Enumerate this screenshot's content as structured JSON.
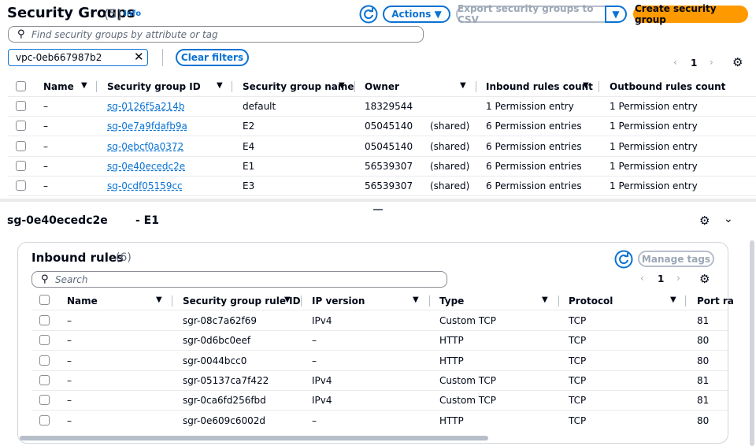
{
  "header": {
    "title": "Security Groups",
    "count": "(5)",
    "info": "Info",
    "actions": "Actions",
    "export": "Export security groups to CSV",
    "create": "Create security group"
  },
  "search": {
    "placeholder": "Find security groups by attribute or tag",
    "token": "vpc-0eb667987b2",
    "clear": "Clear filters",
    "page": "1"
  },
  "table": {
    "columns": [
      "Name",
      "Security group ID",
      "Security group name",
      "Owner",
      "Inbound rules count",
      "Outbound rules count"
    ],
    "rows": [
      {
        "name": "–",
        "id": "sg-0126f5a214b",
        "group": "default",
        "owner": "18329544",
        "inbound": "1 Permission entry",
        "outbound": "1 Permission entry"
      },
      {
        "name": "–",
        "id": "sg-0e7a9fdafb9a",
        "group": "E2",
        "owner": "05045140",
        "shared": "(shared)",
        "inbound": "6 Permission entries",
        "outbound": "1 Permission entry"
      },
      {
        "name": "–",
        "id": "sg-0ebcf0a0372",
        "group": "E4",
        "owner": "05045140",
        "shared": "(shared)",
        "inbound": "6 Permission entries",
        "outbound": "1 Permission entry"
      },
      {
        "name": "–",
        "id": "sg-0e40ecedc2e",
        "group": "E1",
        "owner": "56539307",
        "shared": "(shared)",
        "inbound": "6 Permission entries",
        "outbound": "1 Permission entry"
      },
      {
        "name": "–",
        "id": "sg-0cdf05159cc",
        "group": "E3",
        "owner": "56539307",
        "shared": "(shared)",
        "inbound": "6 Permission entries",
        "outbound": "1 Permission entry"
      }
    ]
  },
  "detail": {
    "title": "sg-0e40ecedc2e",
    "suffix": "- E1"
  },
  "inbound": {
    "title": "Inbound rules",
    "count": "(6)",
    "manage": "Manage tags",
    "search": "Search",
    "page": "1",
    "columns": [
      "Name",
      "Security group rule ID",
      "IP version",
      "Type",
      "Protocol",
      "Port ra"
    ],
    "rows": [
      [
        "–",
        "sgr-08c7a62f69",
        "IPv4",
        "Custom TCP",
        "TCP",
        "81"
      ],
      [
        "–",
        "sgr-0d6bc0eef",
        "–",
        "HTTP",
        "TCP",
        "80"
      ],
      [
        "–",
        "sgr-0044bcc0",
        "–",
        "HTTP",
        "TCP",
        "80"
      ],
      [
        "–",
        "sgr-05137ca7f422",
        "IPv4",
        "Custom TCP",
        "TCP",
        "81"
      ],
      [
        "–",
        "sgr-0ca6fd256fbd",
        "IPv4",
        "Custom TCP",
        "TCP",
        "81"
      ],
      [
        "–",
        "sgr-0e609c6002d",
        "–",
        "HTTP",
        "TCP",
        "80"
      ]
    ]
  }
}
